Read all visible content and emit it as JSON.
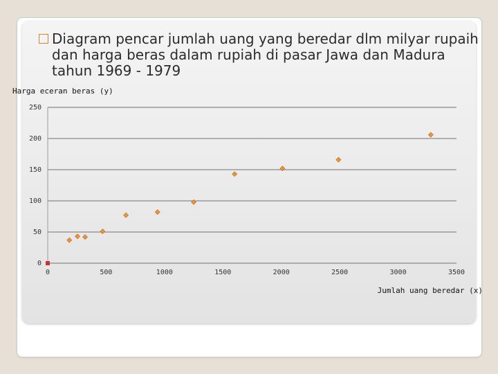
{
  "slide": {
    "title": "Diagram pencar jumlah uang yang beredar dlm milyar rupaih dan harga beras dalam rupiah di pasar Jawa dan Madura tahun 1969 -  1979"
  },
  "chart_data": {
    "type": "scatter",
    "title": "",
    "xlabel": "Jumlah uang beredar (x)",
    "ylabel": "Harga eceran beras (y)",
    "xlim": [
      0,
      3500
    ],
    "ylim": [
      0,
      250
    ],
    "x_ticks": [
      "0",
      "500",
      "1000",
      "1500",
      "2000",
      "2500",
      "3000",
      "3500"
    ],
    "y_ticks": [
      "0",
      "50",
      "100",
      "150",
      "200",
      "250"
    ],
    "grid": "horizontal",
    "points": [
      {
        "x": 185,
        "y": 37
      },
      {
        "x": 255,
        "y": 43
      },
      {
        "x": 320,
        "y": 42
      },
      {
        "x": 470,
        "y": 51
      },
      {
        "x": 670,
        "y": 77
      },
      {
        "x": 940,
        "y": 82
      },
      {
        "x": 1250,
        "y": 98
      },
      {
        "x": 1600,
        "y": 143
      },
      {
        "x": 2010,
        "y": 152
      },
      {
        "x": 2490,
        "y": 166
      },
      {
        "x": 3280,
        "y": 206
      }
    ],
    "origin_marker": {
      "x": 0,
      "y": 0
    },
    "colors": {
      "marker": "#e8963a",
      "marker_stroke": "#b8661a",
      "origin": "#c0392b",
      "grid": "#9a9a9a"
    }
  }
}
